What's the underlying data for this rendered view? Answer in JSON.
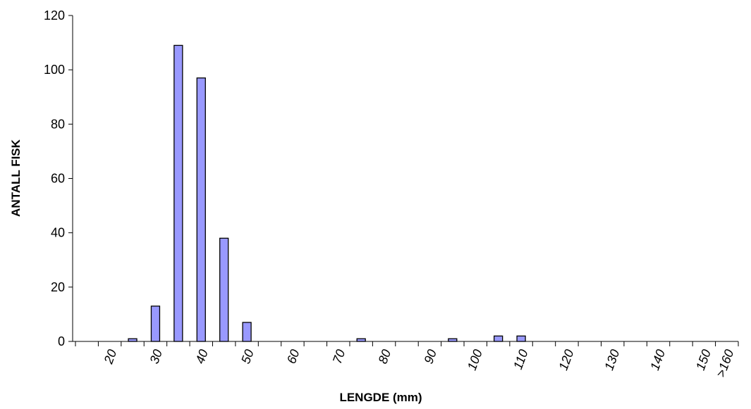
{
  "chart_data": {
    "type": "bar",
    "x_label": "LENGDE (mm)",
    "y_label": "ANTALL FISK",
    "categories": [
      null,
      "20",
      null,
      "30",
      null,
      "40",
      null,
      "50",
      null,
      "60",
      null,
      "70",
      null,
      "80",
      null,
      "90",
      null,
      "100",
      null,
      "110",
      null,
      "120",
      null,
      "130",
      null,
      "140",
      null,
      "150",
      ">160"
    ],
    "values": [
      0,
      0,
      1,
      13,
      109,
      97,
      38,
      7,
      0,
      0,
      0,
      0,
      1,
      0,
      0,
      0,
      1,
      0,
      2,
      2,
      0,
      0,
      0,
      0,
      0,
      0,
      0,
      0,
      0
    ],
    "color": "#9999ff",
    "ylim": [
      0,
      120
    ],
    "yticks": [
      0,
      20,
      40,
      60,
      80,
      100,
      120
    ],
    "grid": false
  }
}
